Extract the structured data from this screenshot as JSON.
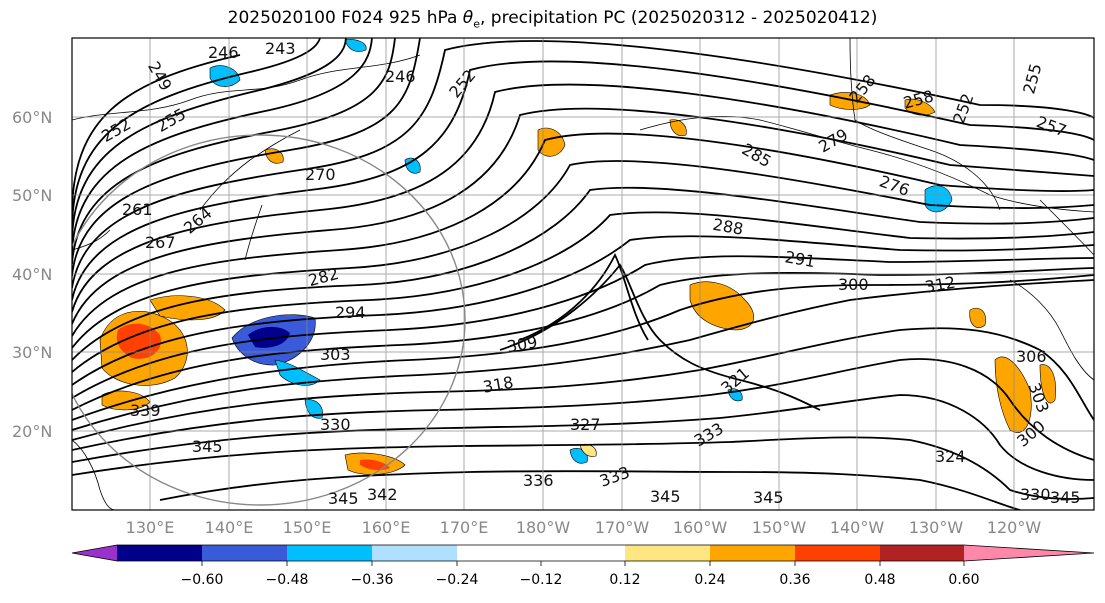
{
  "title_main": "2025020100 F024 925 hPa ",
  "title_theta": "θ",
  "title_theta_sub": "e",
  "title_rest": ", precipitation PC (2025020312 - 2025020412)",
  "lat_labels": [
    "60°N",
    "50°N",
    "40°N",
    "30°N",
    "20°N"
  ],
  "lon_labels": [
    "130°E",
    "140°E",
    "150°E",
    "160°E",
    "170°E",
    "180°W",
    "170°W",
    "160°W",
    "150°W",
    "140°W",
    "130°W",
    "120°W"
  ],
  "contour_labels": [
    "246",
    "243",
    "246",
    "249",
    "252",
    "255",
    "252",
    "261",
    "264",
    "267",
    "270",
    "282",
    "294",
    "303",
    "309",
    "318",
    "330",
    "339",
    "345",
    "345",
    "342",
    "327",
    "336",
    "333",
    "333",
    "321",
    "345",
    "345",
    "300",
    "312",
    "288",
    "291",
    "285",
    "279",
    "276",
    "258",
    "258",
    "257",
    "255",
    "252",
    "306",
    "303",
    "300",
    "324",
    "330",
    "345"
  ],
  "colorbar": {
    "colors": [
      "#9932cc",
      "#00008b",
      "#3a5bd9",
      "#00bfff",
      "#b0e0ff",
      "#ffffff",
      "#ffe680",
      "#ffa500",
      "#ff4000",
      "#b22222",
      "#ff88aa"
    ],
    "tick_labels": [
      "−0.60",
      "−0.48",
      "−0.36",
      "−0.24",
      "−0.12",
      "0.12",
      "0.24",
      "0.36",
      "0.48",
      "0.60"
    ]
  },
  "map_data": {
    "lat_ticks": [
      60,
      50,
      40,
      30,
      20
    ],
    "lon_ticks": [
      130,
      140,
      150,
      160,
      170,
      180,
      -170,
      -160,
      -150,
      -140,
      -130,
      -120
    ],
    "field": "925 hPa equivalent potential temperature (K)",
    "shading": "precipitation PC"
  }
}
